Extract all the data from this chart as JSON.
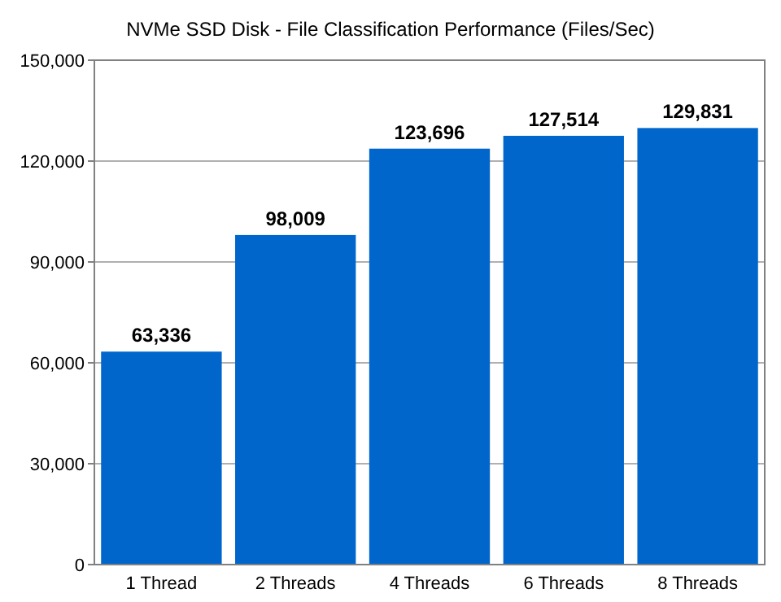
{
  "chart_data": {
    "type": "bar",
    "title": "NVMe SSD Disk - File Classification Performance (Files/Sec)",
    "categories": [
      "1 Thread",
      "2 Threads",
      "4 Threads",
      "6 Threads",
      "8 Threads"
    ],
    "values": [
      63336,
      98009,
      123696,
      127514,
      129831
    ],
    "color": "#0066cc",
    "ylim": [
      0,
      150000
    ],
    "yticks": [
      {
        "value": 0,
        "label": "0"
      },
      {
        "value": 30000,
        "label": "30,000"
      },
      {
        "value": 60000,
        "label": "60,000"
      },
      {
        "value": 90000,
        "label": "90,000"
      },
      {
        "value": 120000,
        "label": "120,000"
      },
      {
        "value": 150000,
        "label": "150,000"
      }
    ],
    "grid": "y",
    "value_labels": [
      "63,336",
      "98,009",
      "123,696",
      "127,514",
      "129,831"
    ]
  }
}
